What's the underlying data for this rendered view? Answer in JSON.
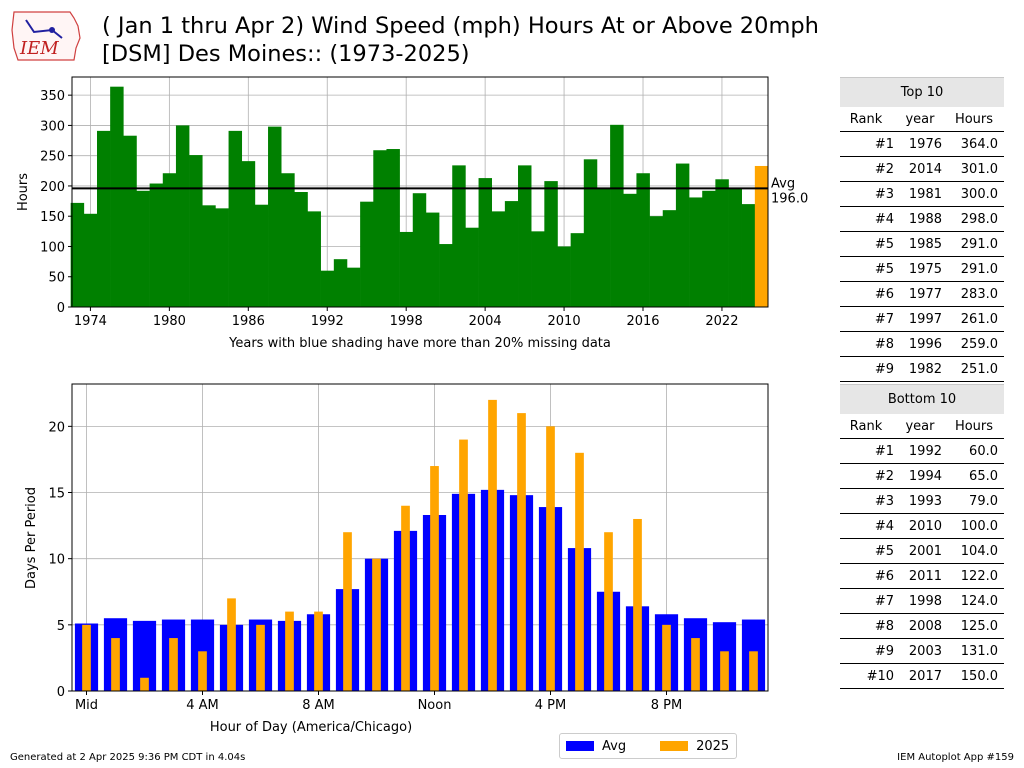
{
  "header": {
    "logo_text": "IEM",
    "title_line1": "( Jan 1 thru Apr 2) Wind Speed (mph) Hours At or Above 20mph",
    "title_line2": "[DSM] Des Moines:: (1973-2025)"
  },
  "colors": {
    "bar": "#008000",
    "current": "#ffa500",
    "avg": "#0000ff",
    "avgline": "#000000"
  },
  "chart_data": [
    {
      "type": "bar",
      "years": [
        1973,
        1974,
        1975,
        1976,
        1977,
        1978,
        1979,
        1980,
        1981,
        1982,
        1983,
        1984,
        1985,
        1986,
        1987,
        1988,
        1989,
        1990,
        1991,
        1992,
        1993,
        1994,
        1995,
        1996,
        1997,
        1998,
        1999,
        2000,
        2001,
        2002,
        2003,
        2004,
        2005,
        2006,
        2007,
        2008,
        2009,
        2010,
        2011,
        2012,
        2013,
        2014,
        2015,
        2016,
        2017,
        2018,
        2019,
        2020,
        2021,
        2022,
        2023,
        2024,
        2025
      ],
      "values": [
        172,
        154,
        291,
        364,
        283,
        192,
        204,
        221,
        300,
        251,
        168,
        163,
        291,
        241,
        169,
        298,
        221,
        190,
        158,
        60,
        79,
        65,
        174,
        259,
        261,
        124,
        188,
        156,
        104,
        234,
        131,
        213,
        158,
        175,
        234,
        125,
        208,
        100,
        122,
        244,
        196,
        301,
        187,
        221,
        150,
        160,
        237,
        181,
        192,
        211,
        196,
        170,
        233
      ],
      "highlight_year": 2025,
      "ylabel": "Hours",
      "xlabel": "Years with blue shading have more than 20% missing data",
      "xticks": [
        1974,
        1980,
        1986,
        1992,
        1998,
        2004,
        2010,
        2016,
        2022
      ],
      "yticks": [
        0,
        50,
        100,
        150,
        200,
        250,
        300,
        350
      ],
      "ylim": [
        0,
        380
      ],
      "xlim": [
        1972.6,
        2025.5
      ],
      "grid": true,
      "avg_value": 196.0,
      "avg_label": "Avg",
      "avg_value_label": "196.0"
    },
    {
      "type": "bar",
      "hours": [
        0,
        1,
        2,
        3,
        4,
        5,
        6,
        7,
        8,
        9,
        10,
        11,
        12,
        13,
        14,
        15,
        16,
        17,
        18,
        19,
        20,
        21,
        22,
        23
      ],
      "series": [
        {
          "name": "Avg",
          "values": [
            5.1,
            5.5,
            5.3,
            5.4,
            5.4,
            5.0,
            5.4,
            5.3,
            5.8,
            7.7,
            10.0,
            12.1,
            13.3,
            14.9,
            15.2,
            14.8,
            13.9,
            10.8,
            7.5,
            6.4,
            5.8,
            5.5,
            5.2,
            5.4
          ]
        },
        {
          "name": "2025",
          "values": [
            5,
            4,
            1,
            4,
            3,
            7,
            5,
            6,
            6,
            12,
            10,
            14,
            17,
            19,
            22,
            21,
            20,
            18,
            12,
            13,
            5,
            4,
            3,
            3
          ]
        }
      ],
      "ylabel": "Days Per Period",
      "xlabel": "Hour of Day (America/Chicago)",
      "xtick_hours": [
        0,
        4,
        8,
        12,
        16,
        20
      ],
      "xtick_labels": [
        "Mid",
        "4 AM",
        "8 AM",
        "Noon",
        "4 PM",
        "8 PM"
      ],
      "yticks": [
        0,
        5,
        10,
        15,
        20
      ],
      "ylim": [
        0,
        23.2
      ],
      "xlim": [
        -0.5,
        23.5
      ],
      "grid": true,
      "legend_placement": "lower-center"
    }
  ],
  "top10": {
    "title": "Top 10",
    "headers": [
      "Rank",
      "year",
      "Hours"
    ],
    "rows": [
      [
        "#1",
        "1976",
        "364.0"
      ],
      [
        "#2",
        "2014",
        "301.0"
      ],
      [
        "#3",
        "1981",
        "300.0"
      ],
      [
        "#4",
        "1988",
        "298.0"
      ],
      [
        "#5",
        "1985",
        "291.0"
      ],
      [
        "#5",
        "1975",
        "291.0"
      ],
      [
        "#6",
        "1977",
        "283.0"
      ],
      [
        "#7",
        "1997",
        "261.0"
      ],
      [
        "#8",
        "1996",
        "259.0"
      ],
      [
        "#9",
        "1982",
        "251.0"
      ]
    ]
  },
  "bottom10": {
    "title": "Bottom 10",
    "headers": [
      "Rank",
      "year",
      "Hours"
    ],
    "rows": [
      [
        "#1",
        "1992",
        "60.0"
      ],
      [
        "#2",
        "1994",
        "65.0"
      ],
      [
        "#3",
        "1993",
        "79.0"
      ],
      [
        "#4",
        "2010",
        "100.0"
      ],
      [
        "#5",
        "2001",
        "104.0"
      ],
      [
        "#6",
        "2011",
        "122.0"
      ],
      [
        "#7",
        "1998",
        "124.0"
      ],
      [
        "#8",
        "2008",
        "125.0"
      ],
      [
        "#9",
        "2003",
        "131.0"
      ],
      [
        "#10",
        "2017",
        "150.0"
      ]
    ]
  },
  "legend": {
    "avg_label": "Avg",
    "cur_label": "2025"
  },
  "footer": {
    "generated": "Generated at 2 Apr 2025 9:36 PM CDT in 4.04s",
    "app": "IEM Autoplot App #159"
  }
}
